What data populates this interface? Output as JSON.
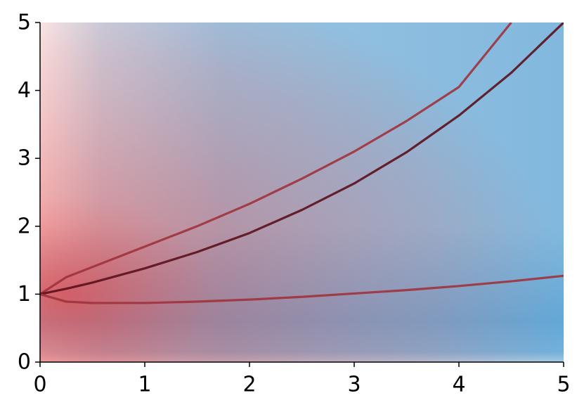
{
  "chart_data": {
    "type": "line",
    "x": [
      0,
      0.25,
      0.5,
      1,
      1.5,
      2,
      2.5,
      3,
      3.5,
      4,
      4.5,
      5
    ],
    "series": [
      {
        "color": "#a0323c",
        "values": [
          1,
          1.25,
          1.4,
          1.7,
          2.0,
          2.33,
          2.7,
          3.1,
          3.55,
          4.05,
          5.0,
          null
        ]
      },
      {
        "color": "#5c0f1c",
        "values": [
          1,
          1.08,
          1.17,
          1.38,
          1.62,
          1.9,
          2.24,
          2.63,
          3.09,
          3.63,
          4.26,
          5.0
        ]
      },
      {
        "color": "#a0323c",
        "values": [
          1,
          0.89,
          0.87,
          0.87,
          0.89,
          0.92,
          0.96,
          1.01,
          1.06,
          1.12,
          1.19,
          1.27
        ]
      }
    ],
    "xlim": [
      0,
      5
    ],
    "xticks": [
      0,
      1,
      2,
      3,
      4,
      5
    ],
    "ylim": [
      0,
      5
    ],
    "yticks": [
      0,
      1,
      2,
      3,
      4,
      5
    ]
  }
}
